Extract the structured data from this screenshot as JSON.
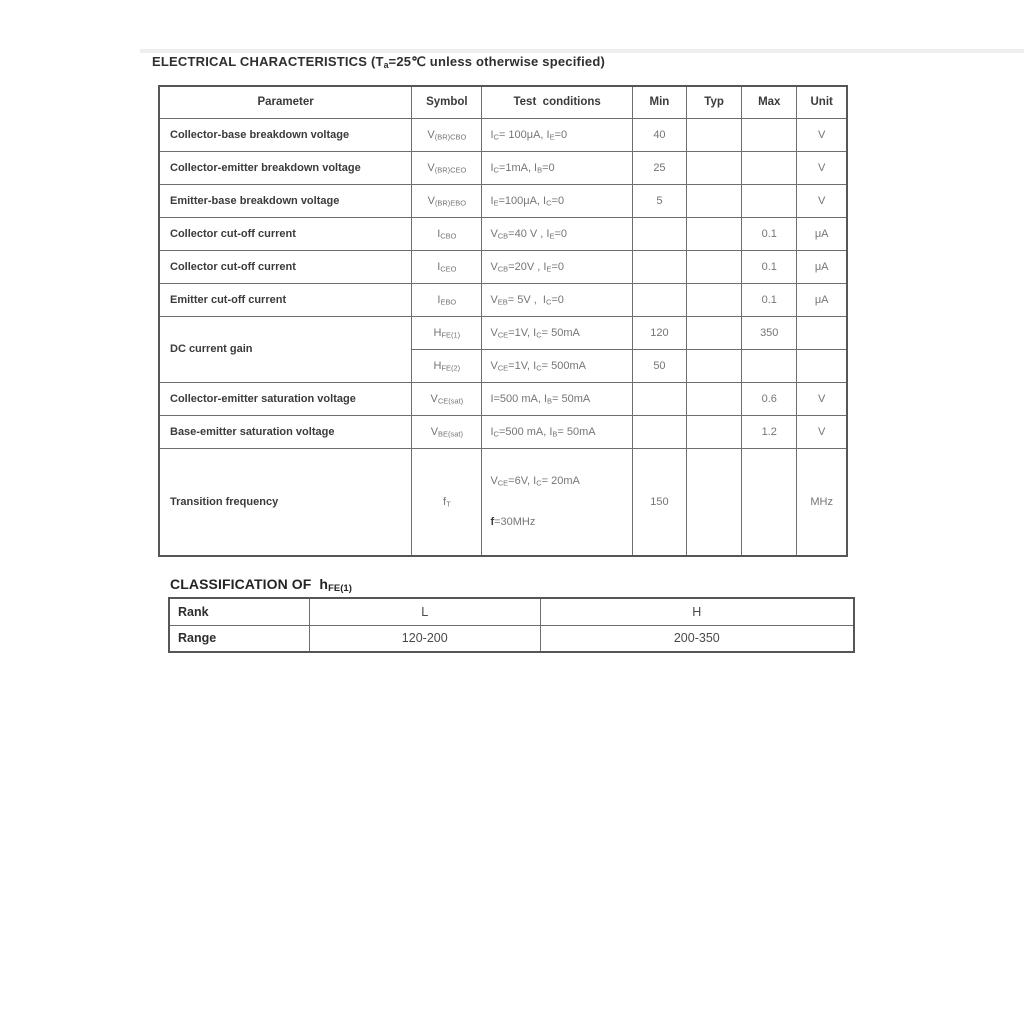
{
  "titles": {
    "electrical": [
      {
        "t": "ELECTRICAL CHARACTERISTICS (T"
      },
      {
        "s": "a"
      },
      {
        "t": "=25℃ unless otherwise specified)"
      }
    ],
    "classification": [
      {
        "t": "CLASSIFICATION OF  h"
      },
      {
        "s": "FE(1)"
      }
    ]
  },
  "electrical_table": {
    "headers": [
      "Parameter",
      "Symbol",
      "Test  conditions",
      "Min",
      "Typ",
      "Max",
      "Unit"
    ],
    "rows": [
      {
        "parameter": "Collector-base breakdown voltage",
        "symbol": [
          {
            "t": "V"
          },
          {
            "s": "(BR)CBO"
          }
        ],
        "cond1": [
          {
            "t": "I"
          },
          {
            "s": "C"
          },
          {
            "t": "= 100μA, I"
          },
          {
            "s": "E"
          },
          {
            "t": "=0"
          }
        ],
        "min": "40",
        "typ": "",
        "max": "",
        "unit": "V"
      },
      {
        "parameter": "Collector-emitter breakdown voltage",
        "symbol": [
          {
            "t": "V"
          },
          {
            "s": "(BR)CEO"
          }
        ],
        "cond1": [
          {
            "t": "I"
          },
          {
            "s": "C"
          },
          {
            "t": "=1mA, I"
          },
          {
            "s": "B"
          },
          {
            "t": "=0"
          }
        ],
        "min": "25",
        "typ": "",
        "max": "",
        "unit": "V"
      },
      {
        "parameter": "Emitter-base breakdown voltage",
        "symbol": [
          {
            "t": "V"
          },
          {
            "s": "(BR)EBO"
          }
        ],
        "cond1": [
          {
            "t": "I"
          },
          {
            "s": "E"
          },
          {
            "t": "=100μA, I"
          },
          {
            "s": "C"
          },
          {
            "t": "=0"
          }
        ],
        "min": "5",
        "typ": "",
        "max": "",
        "unit": "V"
      },
      {
        "parameter": "Collector cut-off current",
        "symbol": [
          {
            "t": "I"
          },
          {
            "s": "CBO"
          }
        ],
        "cond1": [
          {
            "t": "V"
          },
          {
            "s": "CB"
          },
          {
            "t": "=40 V , I"
          },
          {
            "s": "E"
          },
          {
            "t": "=0"
          }
        ],
        "min": "",
        "typ": "",
        "max": "0.1",
        "unit": "μA"
      },
      {
        "parameter": "Collector cut-off current",
        "symbol": [
          {
            "t": "I"
          },
          {
            "s": "CEO"
          }
        ],
        "cond1": [
          {
            "t": "V"
          },
          {
            "s": "CB"
          },
          {
            "t": "=20V , I"
          },
          {
            "s": "E"
          },
          {
            "t": "=0"
          }
        ],
        "min": "",
        "typ": "",
        "max": "0.1",
        "unit": "μA"
      },
      {
        "parameter": "Emitter cut-off current",
        "symbol": [
          {
            "t": "I"
          },
          {
            "s": "EBO"
          }
        ],
        "cond1": [
          {
            "t": "V"
          },
          {
            "s": "EB"
          },
          {
            "t": "= 5V ,  I"
          },
          {
            "s": "C"
          },
          {
            "t": "=0"
          }
        ],
        "min": "",
        "typ": "",
        "max": "0.1",
        "unit": "μA"
      },
      {
        "parameter": "DC current gain",
        "symbol": [
          {
            "t": "H"
          },
          {
            "s": "FE(1)"
          }
        ],
        "cond1": [
          {
            "t": "V"
          },
          {
            "s": "CE"
          },
          {
            "t": "=1V, I"
          },
          {
            "s": "C"
          },
          {
            "t": "= 50mA"
          }
        ],
        "min": "120",
        "typ": "",
        "max": "350",
        "unit": ""
      },
      {
        "parameter": "",
        "symbol": [
          {
            "t": "H"
          },
          {
            "s": "FE(2)"
          }
        ],
        "cond1": [
          {
            "t": "V"
          },
          {
            "s": "CE"
          },
          {
            "t": "=1V, I"
          },
          {
            "s": "C"
          },
          {
            "t": "= 500mA"
          }
        ],
        "min": "50",
        "typ": "",
        "max": "",
        "unit": ""
      },
      {
        "parameter": "Collector-emitter saturation voltage",
        "symbol": [
          {
            "t": "V"
          },
          {
            "s": "CE(sat)"
          }
        ],
        "cond1": [
          {
            "t": "I=500 mA, I"
          },
          {
            "s": "B"
          },
          {
            "t": "= 50mA"
          }
        ],
        "min": "",
        "typ": "",
        "max": "0.6",
        "unit": "V"
      },
      {
        "parameter": "Base-emitter saturation voltage",
        "symbol": [
          {
            "t": "V"
          },
          {
            "s": "BE(sat)"
          }
        ],
        "cond1": [
          {
            "t": "I"
          },
          {
            "s": "C"
          },
          {
            "t": "=500 mA, I"
          },
          {
            "s": "B"
          },
          {
            "t": "= 50mA"
          }
        ],
        "min": "",
        "typ": "",
        "max": "1.2",
        "unit": "V"
      },
      {
        "parameter": "Transition frequency",
        "symbol": [
          {
            "t": "f"
          },
          {
            "s": "T"
          }
        ],
        "cond1": [
          {
            "t": "V"
          },
          {
            "s": "CE"
          },
          {
            "t": "=6V, I"
          },
          {
            "s": "C"
          },
          {
            "t": "= 20mA"
          }
        ],
        "cond2": [
          {
            "b": "f"
          },
          {
            "t": "=30MHz"
          }
        ],
        "min": "150",
        "typ": "",
        "max": "",
        "unit": "MHz"
      }
    ]
  },
  "classification_table": {
    "rows": [
      {
        "label": "Rank",
        "l": "L",
        "h": "H"
      },
      {
        "label": "Range",
        "l": "120-200",
        "h": "200-350"
      }
    ]
  }
}
